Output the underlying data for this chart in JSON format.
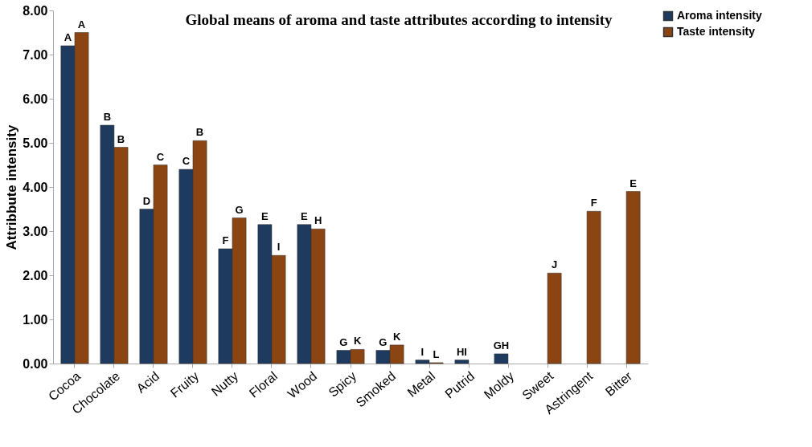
{
  "chart_data": {
    "type": "bar",
    "title": "Global means of aroma and taste attributes according to intensity",
    "ylabel": "Attribbute intensity",
    "categories": [
      "Cocoa",
      "Chocolate",
      "Acid",
      "Fruity",
      "Nutty",
      "Floral",
      "Wood",
      "Spicy",
      "Smoked",
      "Metal",
      "Putrid",
      "Moldy",
      "Sweet",
      "Astringent",
      "Bitter"
    ],
    "series": [
      {
        "name": "Aroma intensity",
        "color": "#1f3a5f",
        "values": [
          7.2,
          5.4,
          3.5,
          4.4,
          2.6,
          3.15,
          3.15,
          0.3,
          0.3,
          0.08,
          0.08,
          0.22,
          null,
          null,
          null
        ],
        "value_labels": [
          "A",
          "B",
          "D",
          "C",
          "F",
          "E",
          "E",
          "G",
          "G",
          "I",
          "HI",
          "GH",
          null,
          null,
          null
        ]
      },
      {
        "name": "Taste intensity",
        "color": "#8b4513",
        "values": [
          7.5,
          4.9,
          4.5,
          5.05,
          3.3,
          2.45,
          3.05,
          0.32,
          0.42,
          0.02,
          null,
          null,
          2.05,
          3.45,
          3.9
        ],
        "value_labels": [
          "A",
          "B",
          "C",
          "B",
          "G",
          "I",
          "H",
          "K",
          "K",
          "L",
          null,
          null,
          "J",
          "F",
          "E"
        ]
      }
    ],
    "ylim": [
      0,
      8
    ],
    "yticks": [
      {
        "value": 0,
        "label": "0.00"
      },
      {
        "value": 1,
        "label": "1.00"
      },
      {
        "value": 2,
        "label": "2.00"
      },
      {
        "value": 3,
        "label": "3.00"
      },
      {
        "value": 4,
        "label": "4.00"
      },
      {
        "value": 5,
        "label": "5.00"
      },
      {
        "value": 6,
        "label": "6.00"
      },
      {
        "value": 7,
        "label": "7.00"
      },
      {
        "value": 8,
        "label": "8.00"
      }
    ],
    "grid": false,
    "legend": "right"
  }
}
